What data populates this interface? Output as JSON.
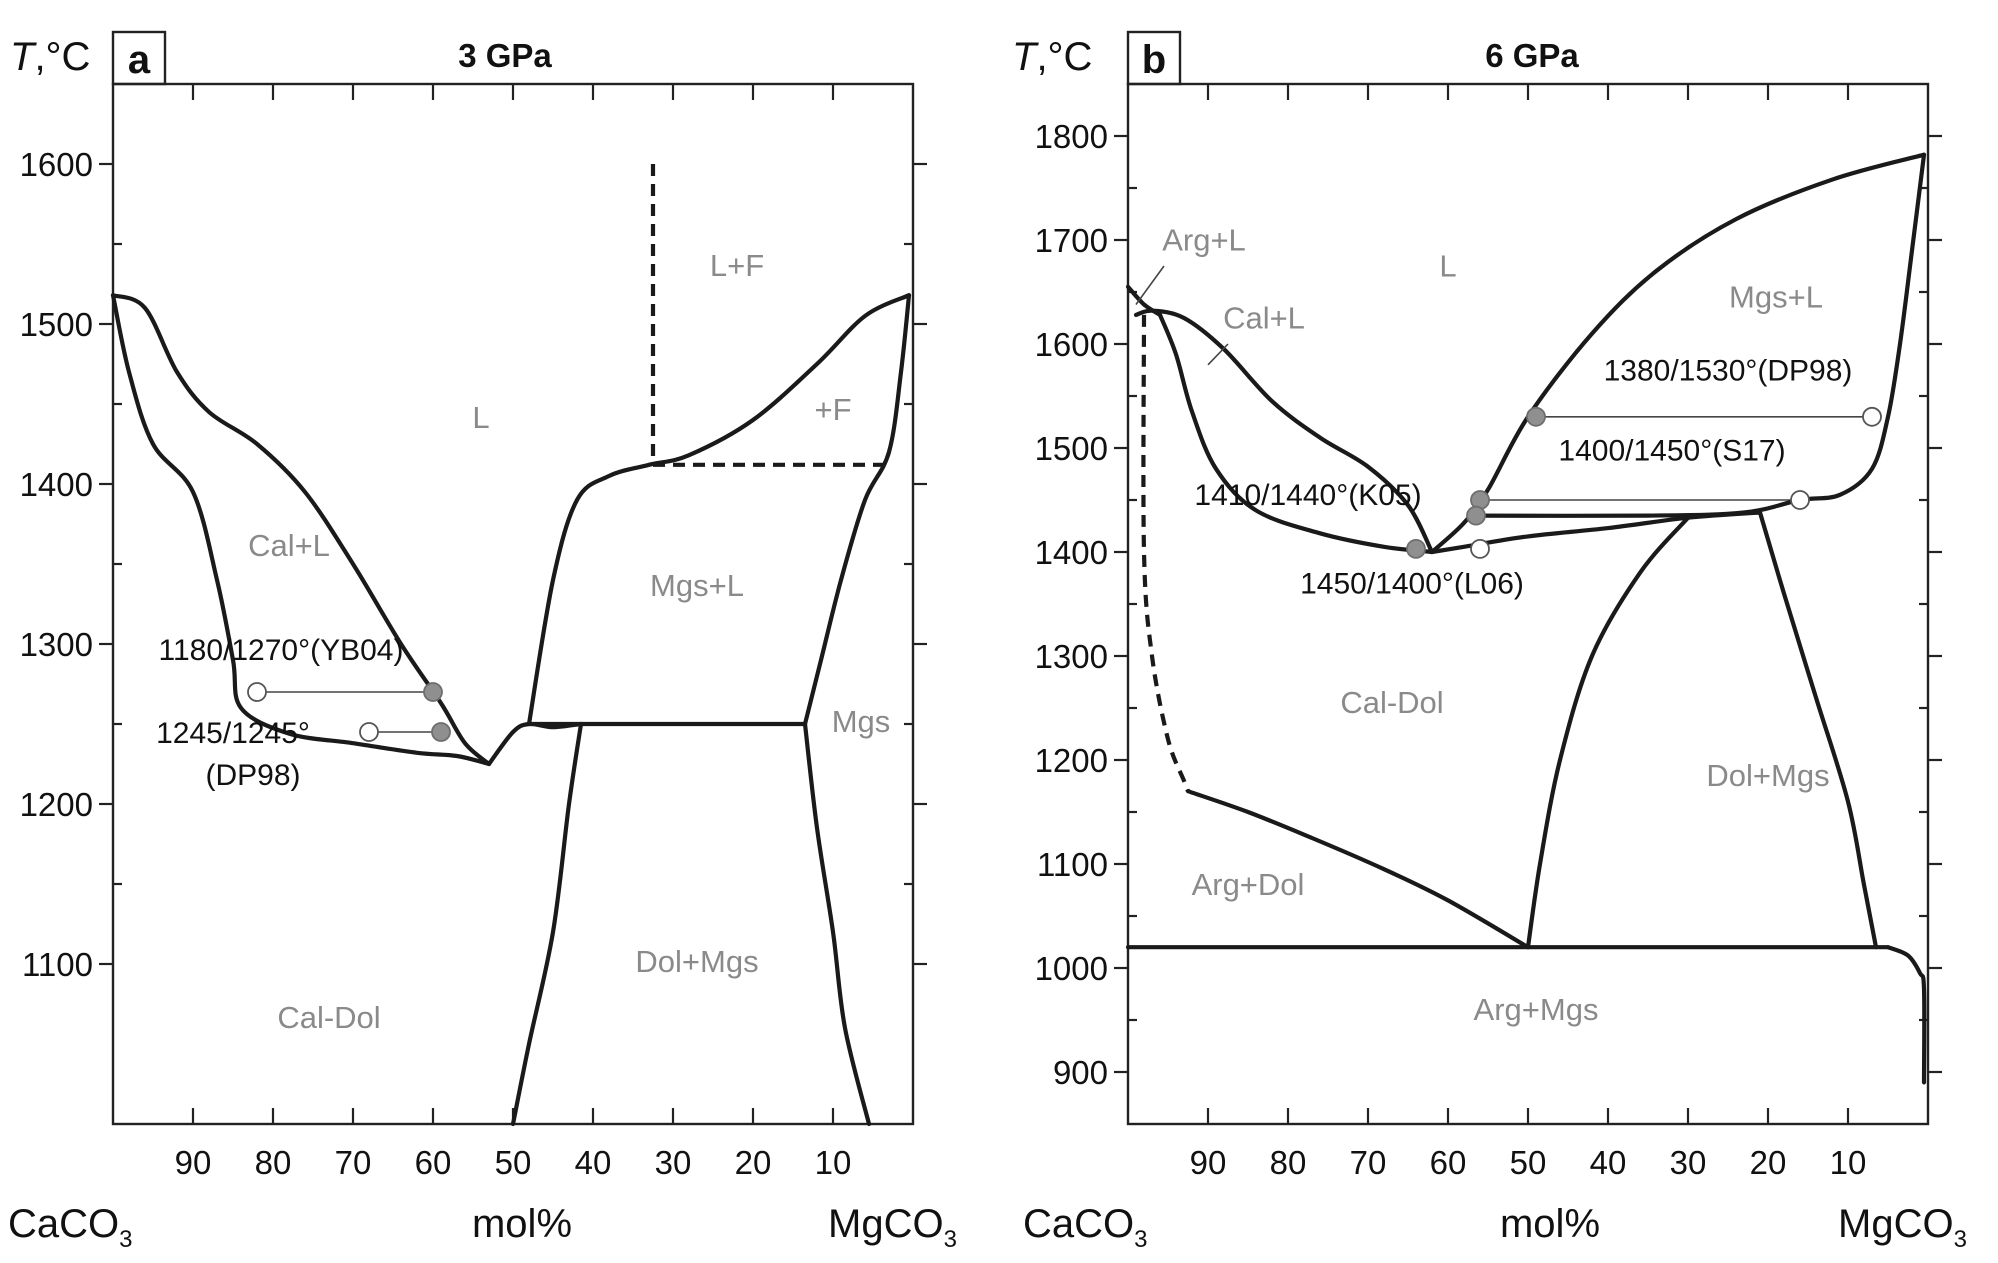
{
  "chart_data": [
    {
      "type": "phase-diagram",
      "panel": "a",
      "title": "3 GPa",
      "ylabel_var": "T",
      "ylabel_unit": ",°C",
      "xlabel": "mol%",
      "left_end": "CaCO",
      "right_end": "MgCO",
      "end_subscript": "3",
      "x_axis": "mol% CaCO3",
      "xlim": [
        100,
        0
      ],
      "ylim": [
        1000,
        1650
      ],
      "x_ticks": [
        90,
        80,
        70,
        60,
        50,
        40,
        30,
        20,
        10
      ],
      "y_ticks": [
        1100,
        1200,
        1300,
        1400,
        1500,
        1600
      ],
      "regions": [
        {
          "label": "L",
          "x": 54,
          "y": 1435
        },
        {
          "label": "L+F",
          "x": 22,
          "y": 1530
        },
        {
          "label": "+F",
          "x": 10,
          "y": 1440
        },
        {
          "label": "Cal+L",
          "x": 78,
          "y": 1355
        },
        {
          "label": "Mgs+L",
          "x": 27,
          "y": 1330
        },
        {
          "label": "Mgs",
          "x": 6.5,
          "y": 1245
        },
        {
          "label": "Dol+Mgs",
          "x": 27,
          "y": 1095
        },
        {
          "label": "Cal-Dol",
          "x": 73,
          "y": 1060
        }
      ],
      "boundaries": [
        {
          "style": "solid",
          "points": [
            [
              100,
              1518
            ],
            [
              96,
              1510
            ],
            [
              92,
              1470
            ],
            [
              88,
              1445
            ],
            [
              82,
              1425
            ],
            [
              76,
              1395
            ],
            [
              70,
              1350
            ],
            [
              64,
              1300
            ],
            [
              59,
              1263
            ],
            [
              56,
              1238
            ],
            [
              53,
              1225
            ]
          ]
        },
        {
          "style": "solid",
          "points": [
            [
              100,
              1518
            ],
            [
              98,
              1470
            ],
            [
              95,
              1425
            ],
            [
              90,
              1395
            ],
            [
              87,
              1340
            ],
            [
              85,
              1290
            ],
            [
              84,
              1260
            ],
            [
              78,
              1244
            ],
            [
              70,
              1238
            ],
            [
              62,
              1232
            ],
            [
              57,
              1230
            ],
            [
              53,
              1225
            ]
          ]
        },
        {
          "style": "solid",
          "points": [
            [
              53,
              1225
            ],
            [
              50,
              1245
            ],
            [
              48,
              1250
            ],
            [
              45,
              1248
            ],
            [
              41.5,
              1250
            ]
          ]
        },
        {
          "style": "solid",
          "points": [
            [
              48,
              1250
            ],
            [
              45,
              1340
            ],
            [
              42,
              1390
            ],
            [
              38,
              1405
            ],
            [
              33,
              1412
            ],
            [
              28,
              1418
            ],
            [
              20,
              1440
            ],
            [
              12,
              1475
            ],
            [
              6,
              1505
            ],
            [
              0.5,
              1518
            ]
          ]
        },
        {
          "style": "solid",
          "points": [
            [
              0.5,
              1518
            ],
            [
              1.5,
              1470
            ],
            [
              3,
              1420
            ],
            [
              6,
              1390
            ],
            [
              9,
              1340
            ],
            [
              11.5,
              1290
            ],
            [
              13.5,
              1250
            ]
          ]
        },
        {
          "style": "solid",
          "points": [
            [
              48,
              1250
            ],
            [
              13.5,
              1250
            ]
          ]
        },
        {
          "style": "solid",
          "points": [
            [
              41.5,
              1250
            ],
            [
              43,
              1200
            ],
            [
              45,
              1120
            ],
            [
              48,
              1050
            ],
            [
              50,
              1000
            ]
          ]
        },
        {
          "style": "solid",
          "points": [
            [
              13.5,
              1250
            ],
            [
              12,
              1185
            ],
            [
              10,
              1120
            ],
            [
              8.5,
              1060
            ],
            [
              5.5,
              1000
            ]
          ]
        },
        {
          "style": "dashed",
          "points": [
            [
              32.5,
              1600
            ],
            [
              32.5,
              1412
            ]
          ]
        },
        {
          "style": "dashed",
          "points": [
            [
              32.5,
              1412
            ],
            [
              3.5,
              1412
            ]
          ]
        }
      ],
      "annotations": [
        {
          "label": "1180/1270°(YB04)",
          "x": 79,
          "y": 1290
        },
        {
          "label": "1245/1245°",
          "x": 85,
          "y": 1238
        },
        {
          "label": "(DP98)",
          "x": 82.5,
          "y": 1212
        }
      ],
      "markers": [
        {
          "x": 82,
          "y": 1270,
          "fill": "open"
        },
        {
          "x": 60,
          "y": 1270,
          "fill": "gray"
        },
        {
          "x": 68,
          "y": 1245,
          "fill": "open"
        },
        {
          "x": 59,
          "y": 1245,
          "fill": "gray"
        }
      ],
      "tie_lines": [
        {
          "points": [
            [
              82,
              1270
            ],
            [
              60,
              1270
            ]
          ]
        },
        {
          "points": [
            [
              68,
              1245
            ],
            [
              59,
              1245
            ]
          ]
        }
      ]
    },
    {
      "type": "phase-diagram",
      "panel": "b",
      "title": "6 GPa",
      "ylabel_var": "T",
      "ylabel_unit": ",°C",
      "xlabel": "mol%",
      "left_end": "CaCO",
      "right_end": "MgCO",
      "end_subscript": "3",
      "x_axis": "mol% CaCO3",
      "xlim": [
        100,
        0
      ],
      "ylim": [
        850,
        1850
      ],
      "x_ticks": [
        90,
        80,
        70,
        60,
        50,
        40,
        30,
        20,
        10
      ],
      "y_ticks": [
        900,
        1000,
        1100,
        1200,
        1300,
        1400,
        1500,
        1600,
        1700,
        1800
      ],
      "regions": [
        {
          "label": "L",
          "x": 60,
          "y": 1665
        },
        {
          "label": "Arg+L",
          "x": 90.5,
          "y": 1690
        },
        {
          "label": "Cal+L",
          "x": 83,
          "y": 1615
        },
        {
          "label": "Mgs+L",
          "x": 19,
          "y": 1635
        },
        {
          "label": "Cal-Dol",
          "x": 67,
          "y": 1245
        },
        {
          "label": "Dol+Mgs",
          "x": 20,
          "y": 1175
        },
        {
          "label": "Arg+Dol",
          "x": 85,
          "y": 1070
        },
        {
          "label": "Arg+Mgs",
          "x": 49,
          "y": 950
        }
      ],
      "boundaries": [
        {
          "style": "solid",
          "points": [
            [
              100,
              1655
            ],
            [
              98,
              1638
            ],
            [
              96,
              1628
            ]
          ]
        },
        {
          "style": "solid",
          "points": [
            [
              99,
              1628
            ],
            [
              97,
              1632
            ],
            [
              93,
              1625
            ],
            [
              88,
              1595
            ],
            [
              82,
              1545
            ],
            [
              76,
              1510
            ],
            [
              70,
              1482
            ],
            [
              65,
              1445
            ],
            [
              62,
              1400
            ]
          ]
        },
        {
          "style": "solid",
          "points": [
            [
              96,
              1628
            ],
            [
              94,
              1590
            ],
            [
              92,
              1535
            ],
            [
              89,
              1480
            ],
            [
              84,
              1440
            ],
            [
              76,
              1418
            ],
            [
              68,
              1405
            ],
            [
              62,
              1400
            ]
          ]
        },
        {
          "style": "solid",
          "points": [
            [
              62,
              1400
            ],
            [
              58,
              1405
            ],
            [
              50,
              1415
            ],
            [
              40,
              1423
            ],
            [
              30,
              1433
            ],
            [
              21,
              1438
            ]
          ]
        },
        {
          "style": "solid",
          "points": [
            [
              62,
              1400
            ],
            [
              58,
              1428
            ],
            [
              55,
              1460
            ],
            [
              50,
              1530
            ],
            [
              42,
              1610
            ],
            [
              34,
              1670
            ],
            [
              24,
              1720
            ],
            [
              12,
              1758
            ],
            [
              0.5,
              1782
            ]
          ]
        },
        {
          "style": "solid",
          "points": [
            [
              0.5,
              1782
            ],
            [
              2,
              1690
            ],
            [
              3.5,
              1600
            ],
            [
              5,
              1530
            ],
            [
              7,
              1480
            ],
            [
              11,
              1455
            ],
            [
              16,
              1450
            ],
            [
              23,
              1438
            ],
            [
              35,
              1435
            ],
            [
              57,
              1435
            ]
          ]
        },
        {
          "style": "solid",
          "points": [
            [
              21,
              1438
            ],
            [
              18,
              1360
            ],
            [
              14,
              1260
            ],
            [
              10,
              1160
            ],
            [
              8,
              1080
            ],
            [
              6.5,
              1020
            ]
          ]
        },
        {
          "style": "solid",
          "points": [
            [
              30,
              1433
            ],
            [
              36,
              1380
            ],
            [
              42,
              1300
            ],
            [
              46,
              1200
            ],
            [
              48.5,
              1100
            ],
            [
              50,
              1020
            ]
          ]
        },
        {
          "style": "solid",
          "points": [
            [
              92.5,
              1170
            ],
            [
              85,
              1150
            ],
            [
              77,
              1125
            ],
            [
              68,
              1095
            ],
            [
              60,
              1065
            ],
            [
              50,
              1020
            ]
          ]
        },
        {
          "style": "solid",
          "points": [
            [
              100,
              1020
            ],
            [
              5,
              1020
            ]
          ]
        },
        {
          "style": "solid",
          "points": [
            [
              5,
              1020
            ],
            [
              2.5,
              1012
            ],
            [
              1,
              995
            ],
            [
              0.5,
              980
            ],
            [
              0.5,
              890
            ]
          ]
        },
        {
          "style": "dashed",
          "points": [
            [
              98,
              1628
            ],
            [
              98,
              1400
            ],
            [
              97,
              1300
            ],
            [
              95,
              1220
            ],
            [
              93,
              1180
            ],
            [
              92.5,
              1170
            ]
          ]
        }
      ],
      "annotations": [
        {
          "label": "1380/1530°(DP98)",
          "x": 25,
          "y": 1565
        },
        {
          "label": "1400/1450°(S17)",
          "x": 32,
          "y": 1488
        },
        {
          "label": "1410/1440°(K05)",
          "x": 77.5,
          "y": 1445
        },
        {
          "label": "1450/1400°(L06)",
          "x": 64.5,
          "y": 1360
        }
      ],
      "markers": [
        {
          "x": 49,
          "y": 1530,
          "fill": "gray"
        },
        {
          "x": 7,
          "y": 1530,
          "fill": "open"
        },
        {
          "x": 56,
          "y": 1450,
          "fill": "gray"
        },
        {
          "x": 16,
          "y": 1450,
          "fill": "open"
        },
        {
          "x": 56.5,
          "y": 1435,
          "fill": "gray"
        },
        {
          "x": 64,
          "y": 1403,
          "fill": "gray"
        },
        {
          "x": 56,
          "y": 1403,
          "fill": "open"
        }
      ],
      "tie_lines": [
        {
          "points": [
            [
              49,
              1530
            ],
            [
              7,
              1530
            ]
          ]
        },
        {
          "points": [
            [
              56,
              1450
            ],
            [
              16,
              1450
            ]
          ]
        }
      ]
    }
  ]
}
